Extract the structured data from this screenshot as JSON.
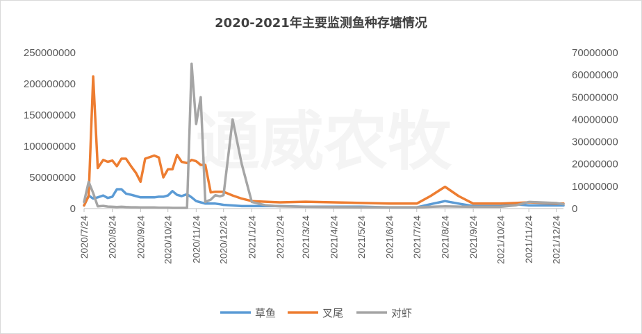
{
  "chart_data": {
    "type": "line",
    "title": "2020-2021年主要监测鱼种存塘情况",
    "watermark": "通威农牧",
    "xlabel": "",
    "ylabel": "",
    "ylim_left": [
      0,
      250000000
    ],
    "ylim_right": [
      0,
      70000000
    ],
    "yticks_left": [
      "0",
      "50000000",
      "100000000",
      "150000000",
      "200000000",
      "250000000"
    ],
    "yticks_right": [
      "0",
      "10000000",
      "20000000",
      "30000000",
      "40000000",
      "50000000",
      "60000000",
      "70000000"
    ],
    "xtick_labels": [
      "2020/7/24",
      "2020/8/24",
      "2020/9/24",
      "2020/10/24",
      "2020/11/24",
      "2020/12/24",
      "2021/1/24",
      "2021/2/24",
      "2021/3/24",
      "2021/4/24",
      "2021/5/24",
      "2021/6/24",
      "2021/7/24",
      "2021/8/24",
      "2021/9/24",
      "2021/10/24",
      "2021/11/24",
      "2021/12/24"
    ],
    "x_range": [
      "2020-07-24",
      "2022-01-01"
    ],
    "grid": false,
    "legend_position": "bottom",
    "series": [
      {
        "name": "草鱼",
        "axis": "left",
        "color": "#5b9bd5",
        "x": [
          "2020-07-24",
          "2020-07-29",
          "2020-08-03",
          "2020-08-08",
          "2020-08-14",
          "2020-08-19",
          "2020-08-24",
          "2020-08-29",
          "2020-09-03",
          "2020-09-08",
          "2020-09-14",
          "2020-09-19",
          "2020-09-24",
          "2020-09-29",
          "2020-10-09",
          "2020-10-14",
          "2020-10-19",
          "2020-10-24",
          "2020-10-29",
          "2020-11-03",
          "2020-11-08",
          "2020-11-14",
          "2020-11-19",
          "2020-11-24",
          "2020-11-29",
          "2020-12-04",
          "2020-12-10",
          "2020-12-15",
          "2020-12-20",
          "2020-12-24",
          "2021-01-03",
          "2021-01-13",
          "2021-01-24",
          "2021-02-08",
          "2021-02-24",
          "2021-03-24",
          "2021-04-24",
          "2021-05-24",
          "2021-06-24",
          "2021-07-24",
          "2021-08-08",
          "2021-08-24",
          "2021-09-08",
          "2021-09-24",
          "2021-10-24",
          "2021-11-10",
          "2021-11-24",
          "2021-12-24",
          "2022-01-01"
        ],
        "values": [
          5000000,
          21000000,
          16000000,
          18000000,
          21000000,
          17000000,
          19000000,
          31000000,
          31000000,
          24000000,
          22000000,
          20000000,
          18000000,
          18000000,
          18000000,
          19000000,
          19000000,
          21000000,
          28000000,
          22000000,
          20000000,
          23000000,
          18000000,
          12000000,
          10000000,
          8000000,
          8000000,
          8000000,
          7000000,
          6000000,
          5000000,
          4000000,
          4000000,
          4000000,
          4000000,
          3000000,
          3000000,
          3000000,
          2000000,
          2000000,
          7000000,
          12000000,
          8000000,
          4000000,
          4000000,
          7000000,
          5000000,
          5000000,
          5000000
        ]
      },
      {
        "name": "叉尾",
        "axis": "left",
        "color": "#ed7d31",
        "x": [
          "2020-07-24",
          "2020-07-29",
          "2020-08-03",
          "2020-08-08",
          "2020-08-14",
          "2020-08-19",
          "2020-08-24",
          "2020-08-29",
          "2020-09-03",
          "2020-09-08",
          "2020-09-14",
          "2020-09-19",
          "2020-09-24",
          "2020-09-29",
          "2020-10-09",
          "2020-10-14",
          "2020-10-19",
          "2020-10-24",
          "2020-10-29",
          "2020-11-03",
          "2020-11-08",
          "2020-11-14",
          "2020-11-19",
          "2020-11-24",
          "2020-11-29",
          "2020-12-04",
          "2020-12-10",
          "2020-12-15",
          "2020-12-20",
          "2020-12-24",
          "2021-01-03",
          "2021-01-13",
          "2021-01-24",
          "2021-02-08",
          "2021-02-24",
          "2021-03-24",
          "2021-04-24",
          "2021-05-24",
          "2021-06-24",
          "2021-07-24",
          "2021-08-08",
          "2021-08-24",
          "2021-09-08",
          "2021-09-24",
          "2021-10-24",
          "2021-11-10",
          "2021-11-24",
          "2021-12-24",
          "2022-01-01"
        ],
        "values": [
          5000000,
          20000000,
          212000000,
          65000000,
          78000000,
          75000000,
          77000000,
          68000000,
          80000000,
          80000000,
          67000000,
          57000000,
          43000000,
          80000000,
          85000000,
          82000000,
          50000000,
          63000000,
          63000000,
          86000000,
          75000000,
          73000000,
          78000000,
          76000000,
          70000000,
          70000000,
          26000000,
          27000000,
          27000000,
          27000000,
          21000000,
          16000000,
          12000000,
          11000000,
          10000000,
          11000000,
          10000000,
          9000000,
          8000000,
          8000000,
          20000000,
          35000000,
          20000000,
          8000000,
          8000000,
          9000000,
          10000000,
          8000000,
          8000000
        ]
      },
      {
        "name": "对虾",
        "axis": "right",
        "color": "#a5a5a5",
        "x": [
          "2020-07-24",
          "2020-07-29",
          "2020-08-03",
          "2020-08-08",
          "2020-08-14",
          "2020-08-19",
          "2020-08-24",
          "2020-08-29",
          "2020-09-03",
          "2020-09-08",
          "2020-09-14",
          "2020-09-19",
          "2020-09-24",
          "2020-09-29",
          "2020-10-09",
          "2020-10-14",
          "2020-10-19",
          "2020-10-24",
          "2020-10-29",
          "2020-11-03",
          "2020-11-08",
          "2020-11-14",
          "2020-11-19",
          "2020-11-24",
          "2020-11-29",
          "2020-12-04",
          "2020-12-10",
          "2020-12-15",
          "2020-12-20",
          "2020-12-24",
          "2021-01-03",
          "2021-01-13",
          "2021-01-24",
          "2021-02-08",
          "2021-02-24",
          "2021-03-24",
          "2021-04-24",
          "2021-05-24",
          "2021-06-24",
          "2021-07-24",
          "2021-08-08",
          "2021-08-24",
          "2021-09-08",
          "2021-09-24",
          "2021-10-24",
          "2021-11-10",
          "2021-11-24",
          "2021-12-24",
          "2022-01-01"
        ],
        "values": [
          3000000,
          12000000,
          7000000,
          1000000,
          1200000,
          900000,
          800000,
          700000,
          800000,
          700000,
          600000,
          600000,
          500000,
          500000,
          500000,
          400000,
          400000,
          400000,
          300000,
          300000,
          300000,
          300000,
          65000000,
          38000000,
          50000000,
          3000000,
          4000000,
          6000000,
          5500000,
          6000000,
          40000000,
          20000000,
          3000000,
          1500000,
          1000000,
          800000,
          700000,
          600000,
          600000,
          600000,
          800000,
          1000000,
          900000,
          800000,
          800000,
          1500000,
          3000000,
          2500000,
          2000000
        ]
      }
    ]
  }
}
